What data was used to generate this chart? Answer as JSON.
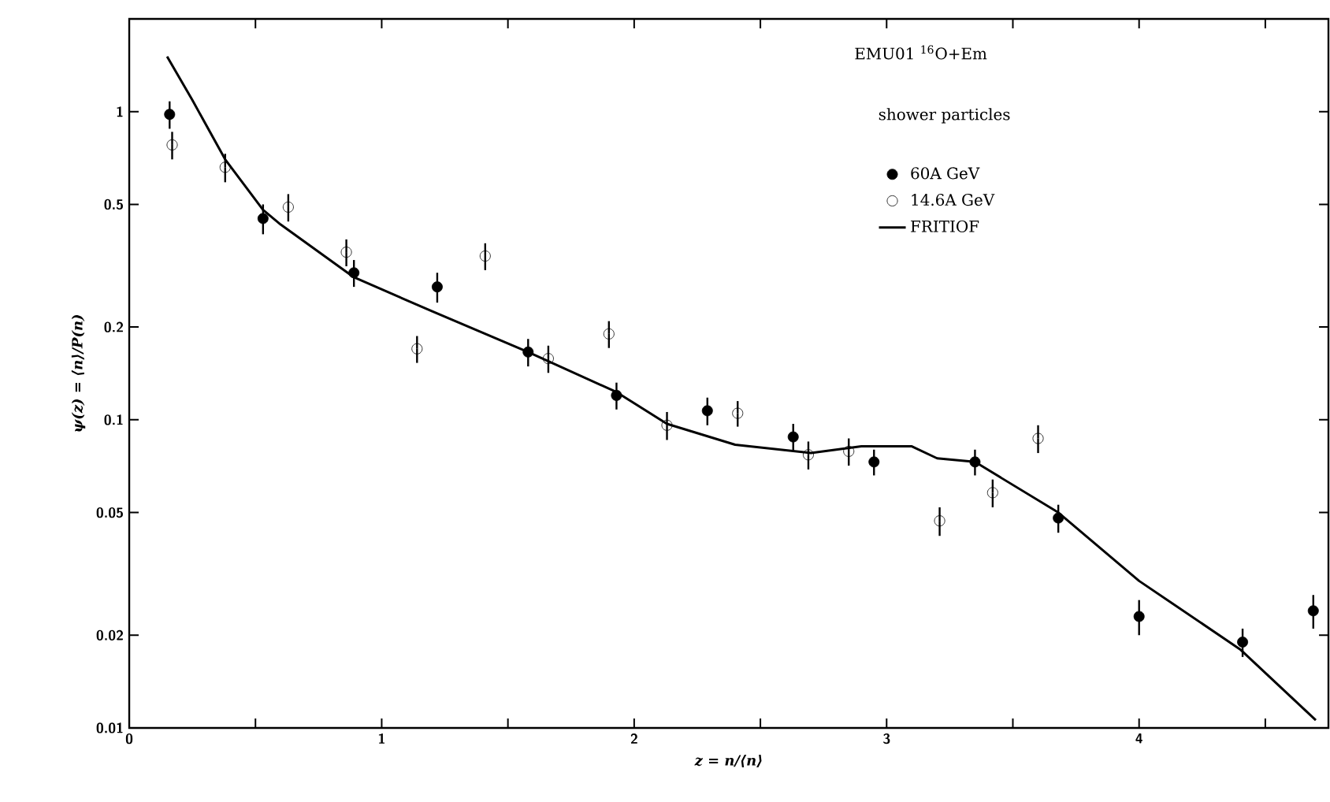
{
  "chart_data": {
    "type": "scatter",
    "title": "EMU01 $^{16}$O+Em",
    "legend_title": "shower particles",
    "xlabel": "z = n/⟨n⟩",
    "ylabel": "ψ(z) = ⟨n⟩/P(n)",
    "log": "y",
    "legend": "top right",
    "xlim": [
      0,
      4.75
    ],
    "ylim": [
      0.01,
      2
    ],
    "xticks": [
      0,
      {
        "value": 0.5,
        "label": null
      },
      1,
      {
        "value": 1.5,
        "label": null
      },
      2,
      {
        "value": 2.5,
        "label": null
      },
      3,
      {
        "value": 3.5,
        "label": null
      },
      4,
      {
        "value": 4.5,
        "label": null
      }
    ],
    "yticks": [
      0.01,
      0.02,
      0.05,
      0.1,
      0.2,
      0.5,
      1
    ],
    "series": [
      {
        "name": "60A GeV",
        "color": "#000000",
        "marker": "circle",
        "x": [
          0.16,
          0.53,
          0.89,
          1.22,
          1.58,
          1.93,
          2.29,
          2.63,
          2.95,
          3.35,
          3.68,
          4.0,
          4.41,
          4.69
        ],
        "values": [
          0.98,
          0.45,
          0.3,
          0.27,
          0.166,
          0.12,
          0.107,
          0.088,
          0.073,
          0.073,
          0.048,
          0.023,
          0.019,
          0.024
        ],
        "errors": [
          0.1,
          0.05,
          0.03,
          0.03,
          0.017,
          0.012,
          0.011,
          0.009,
          0.007,
          0.007,
          0.005,
          0.003,
          0.002,
          0.003
        ]
      },
      {
        "name": "14.6A GeV",
        "color": "#000000",
        "marker": "circle_open",
        "x": [
          0.17,
          0.38,
          0.63,
          0.86,
          1.14,
          1.41,
          1.66,
          1.9,
          2.13,
          2.41,
          2.69,
          2.85,
          3.21,
          3.42,
          3.6
        ],
        "values": [
          0.78,
          0.66,
          0.49,
          0.35,
          0.17,
          0.34,
          0.158,
          0.19,
          0.096,
          0.105,
          0.077,
          0.079,
          0.047,
          0.058,
          0.087
        ],
        "errors": [
          0.08,
          0.07,
          0.05,
          0.035,
          0.017,
          0.034,
          0.016,
          0.019,
          0.01,
          0.01,
          0.008,
          0.008,
          0.005,
          0.006,
          0.009
        ]
      },
      {
        "name": "FRITIOF",
        "type": "line",
        "color": "#000000",
        "marker": "none",
        "x": [
          0.15,
          0.25,
          0.38,
          0.53,
          0.6,
          0.89,
          1.2,
          1.58,
          1.93,
          2.13,
          2.4,
          2.7,
          2.9,
          3.1,
          3.2,
          3.35,
          3.68,
          4.0,
          4.4,
          4.7
        ],
        "values": [
          1.51,
          1.09,
          0.7,
          0.48,
          0.43,
          0.29,
          0.225,
          0.166,
          0.123,
          0.097,
          0.083,
          0.078,
          0.082,
          0.082,
          0.075,
          0.073,
          0.05,
          0.03,
          0.018,
          0.0106
        ]
      }
    ]
  }
}
